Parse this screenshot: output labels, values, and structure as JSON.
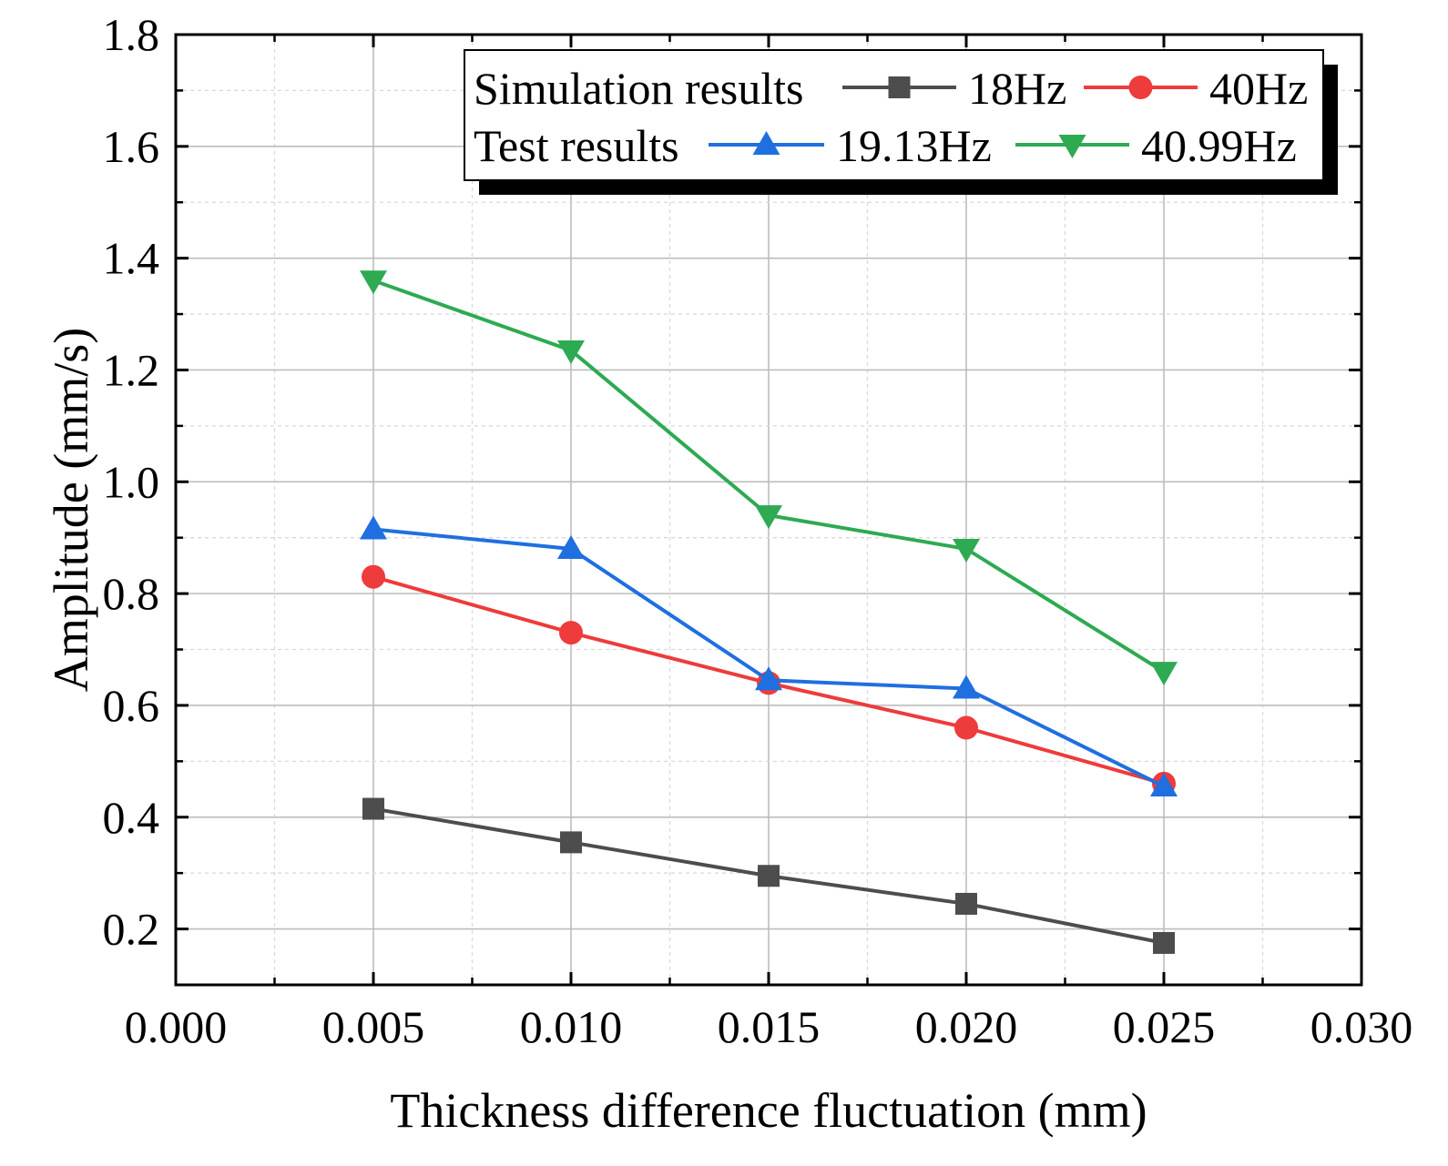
{
  "chart_data": {
    "type": "line",
    "xlabel": "Thickness difference fluctuation (mm)",
    "ylabel": "Amplitude (mm/s)",
    "xlim": [
      0.0,
      0.03
    ],
    "ylim": [
      0.1,
      1.8
    ],
    "xticks": [
      "0.000",
      "0.005",
      "0.010",
      "0.015",
      "0.020",
      "0.025",
      "0.030"
    ],
    "yticks": [
      "0.2",
      "0.4",
      "0.6",
      "0.8",
      "1.0",
      "1.2",
      "1.4",
      "1.6",
      "1.8"
    ],
    "grid": true,
    "legend_position": "top-right",
    "legend_groups": [
      {
        "label": "Simulation results",
        "series": [
          0,
          1
        ]
      },
      {
        "label": "Test results",
        "series": [
          2,
          3
        ]
      }
    ],
    "x": [
      0.005,
      0.01,
      0.015,
      0.02,
      0.025
    ],
    "series": [
      {
        "name": "18Hz",
        "group": "Simulation results",
        "color": "#4d4d4d",
        "marker": "square",
        "values": [
          0.415,
          0.355,
          0.295,
          0.245,
          0.175
        ]
      },
      {
        "name": "40Hz",
        "group": "Simulation results",
        "color": "#ee3b3b",
        "marker": "circle",
        "values": [
          0.83,
          0.73,
          0.64,
          0.56,
          0.46
        ]
      },
      {
        "name": "19.13Hz",
        "group": "Test results",
        "color": "#1f6fe0",
        "marker": "triangle-up",
        "values": [
          0.915,
          0.88,
          0.645,
          0.63,
          0.455
        ]
      },
      {
        "name": "40.99Hz",
        "group": "Test results",
        "color": "#2eaa52",
        "marker": "triangle-down",
        "values": [
          1.36,
          1.235,
          0.94,
          0.88,
          0.66
        ]
      }
    ]
  }
}
